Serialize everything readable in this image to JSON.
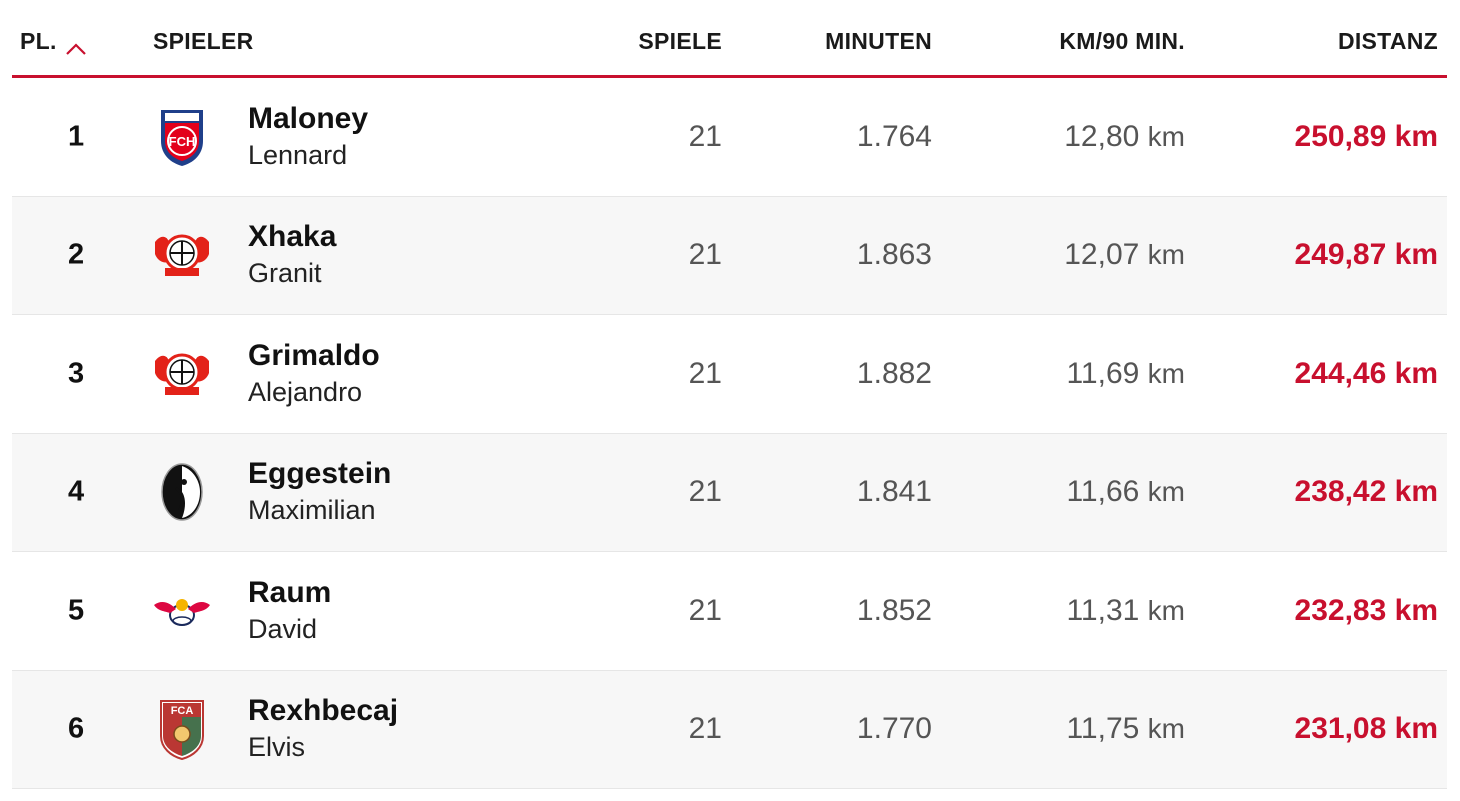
{
  "header": {
    "rank": "PL.",
    "player": "SPIELER",
    "games": "SPIELE",
    "minutes": "MINUTEN",
    "km_per_90": "KM/90 MIN.",
    "distance": "DISTANZ"
  },
  "sort": {
    "column": "rank",
    "direction": "ascending",
    "icon": "chevron-up-icon",
    "accent_color": "#c8102e"
  },
  "rows": [
    {
      "rank": "1",
      "last_name": "Maloney",
      "first_name": "Lennard",
      "club_icon": "heidenheim-crest-icon",
      "logo_text": "FCH",
      "games": "21",
      "minutes": "1.764",
      "km90_value": "12,80",
      "km90_unit": "km",
      "distance": "250,89 km"
    },
    {
      "rank": "2",
      "last_name": "Xhaka",
      "first_name": "Granit",
      "club_icon": "leverkusen-crest-icon",
      "games": "21",
      "minutes": "1.863",
      "km90_value": "12,07",
      "km90_unit": "km",
      "distance": "249,87 km"
    },
    {
      "rank": "3",
      "last_name": "Grimaldo",
      "first_name": "Alejandro",
      "club_icon": "leverkusen-crest-icon",
      "games": "21",
      "minutes": "1.882",
      "km90_value": "11,69",
      "km90_unit": "km",
      "distance": "244,46 km"
    },
    {
      "rank": "4",
      "last_name": "Eggestein",
      "first_name": "Maximilian",
      "club_icon": "freiburg-crest-icon",
      "games": "21",
      "minutes": "1.841",
      "km90_value": "11,66",
      "km90_unit": "km",
      "distance": "238,42 km"
    },
    {
      "rank": "5",
      "last_name": "Raum",
      "first_name": "David",
      "club_icon": "leipzig-crest-icon",
      "games": "21",
      "minutes": "1.852",
      "km90_value": "11,31",
      "km90_unit": "km",
      "distance": "232,83 km"
    },
    {
      "rank": "6",
      "last_name": "Rexhbecaj",
      "first_name": "Elvis",
      "club_icon": "augsburg-crest-icon",
      "logo_text": "FCA",
      "games": "21",
      "minutes": "1.770",
      "km90_value": "11,75",
      "km90_unit": "km",
      "distance": "231,08 km"
    }
  ]
}
